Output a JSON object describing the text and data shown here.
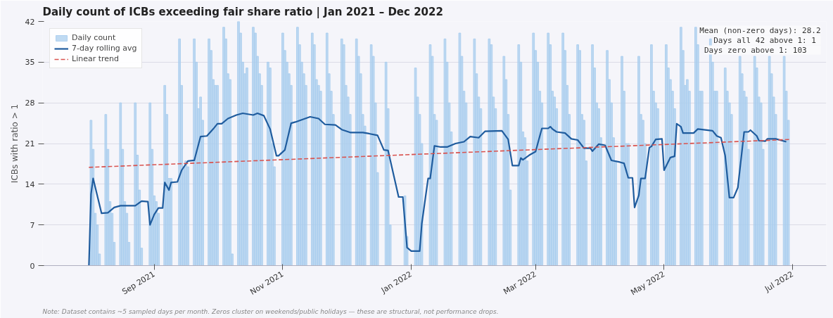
{
  "chart_data": {
    "type": "bar",
    "title": "Daily count of ICBs exceeding fair share ratio  |  Jan 2021 – Dec 2022",
    "ylabel": "ICBs with ratio > 1",
    "annotations": [
      "Mean (non-zero days): 28.2",
      "Days all 42 above 1:  1",
      "Days zero above 1:    103",
      "Note: Dataset contains ~5 sampled days per month. Zeros cluster on weekends/public holidays — these are structural, not performance drops."
    ],
    "xlim": [
      "2021-07-10",
      "2022-07-17"
    ],
    "xticks": [
      {
        "value": "2021-09-01",
        "label": "Sep 2021"
      },
      {
        "value": "2021-11-01",
        "label": "Nov 2021"
      },
      {
        "value": "2022-01-01",
        "label": "Jan 2022"
      },
      {
        "value": "2022-03-01",
        "label": "Mar 2022"
      },
      {
        "value": "2022-05-01",
        "label": "May 2022"
      },
      {
        "value": "2022-07-01",
        "label": "Jul 2022"
      }
    ],
    "ylim": [
      0,
      42
    ],
    "yticks": [
      0,
      7,
      14,
      21,
      28,
      35,
      42
    ],
    "grid": "y",
    "legend": "top left",
    "series": [
      {
        "name": "Daily count",
        "color": "#a9cdee",
        "x": [
          "2021-08-02",
          "2021-08-03",
          "2021-08-04",
          "2021-08-05",
          "2021-08-06",
          "2021-08-09",
          "2021-08-10",
          "2021-08-11",
          "2021-08-12",
          "2021-08-13",
          "2021-08-16",
          "2021-08-17",
          "2021-08-18",
          "2021-08-19",
          "2021-08-20",
          "2021-08-23",
          "2021-08-24",
          "2021-08-25",
          "2021-08-26",
          "2021-08-30",
          "2021-08-31",
          "2021-09-01",
          "2021-09-02",
          "2021-09-03",
          "2021-09-06",
          "2021-09-07",
          "2021-09-08",
          "2021-09-09",
          "2021-09-13",
          "2021-09-14",
          "2021-09-15",
          "2021-09-16",
          "2021-09-17",
          "2021-09-20",
          "2021-09-21",
          "2021-09-22",
          "2021-09-23",
          "2021-09-24",
          "2021-09-27",
          "2021-09-28",
          "2021-09-29",
          "2021-09-30",
          "2021-10-01",
          "2021-10-04",
          "2021-10-05",
          "2021-10-06",
          "2021-10-07",
          "2021-10-08",
          "2021-10-11",
          "2021-10-12",
          "2021-10-13",
          "2021-10-14",
          "2021-10-15",
          "2021-10-18",
          "2021-10-19",
          "2021-10-20",
          "2021-10-21",
          "2021-10-22",
          "2021-10-25",
          "2021-10-26",
          "2021-10-27",
          "2021-10-28",
          "2021-11-01",
          "2021-11-02",
          "2021-11-03",
          "2021-11-04",
          "2021-11-05",
          "2021-11-08",
          "2021-11-09",
          "2021-11-10",
          "2021-11-11",
          "2021-11-12",
          "2021-11-15",
          "2021-11-16",
          "2021-11-17",
          "2021-11-18",
          "2021-11-19",
          "2021-11-22",
          "2021-11-23",
          "2021-11-24",
          "2021-11-25",
          "2021-11-29",
          "2021-11-30",
          "2021-12-01",
          "2021-12-02",
          "2021-12-03",
          "2021-12-06",
          "2021-12-07",
          "2021-12-08",
          "2021-12-09",
          "2021-12-10",
          "2021-12-13",
          "2021-12-14",
          "2021-12-15",
          "2021-12-16",
          "2021-12-20",
          "2021-12-21",
          "2021-12-22",
          "2021-12-29",
          "2021-12-30",
          "2022-01-03",
          "2022-01-04",
          "2022-01-05",
          "2022-01-06",
          "2022-01-10",
          "2022-01-11",
          "2022-01-12",
          "2022-01-13",
          "2022-01-17",
          "2022-01-18",
          "2022-01-19",
          "2022-01-20",
          "2022-01-24",
          "2022-01-25",
          "2022-01-26",
          "2022-01-27",
          "2022-01-31",
          "2022-02-01",
          "2022-02-02",
          "2022-02-03",
          "2022-02-07",
          "2022-02-08",
          "2022-02-09",
          "2022-02-10",
          "2022-02-14",
          "2022-02-15",
          "2022-02-16",
          "2022-02-17",
          "2022-02-21",
          "2022-02-22",
          "2022-02-23",
          "2022-02-24",
          "2022-02-25",
          "2022-02-28",
          "2022-03-01",
          "2022-03-02",
          "2022-03-03",
          "2022-03-04",
          "2022-03-07",
          "2022-03-08",
          "2022-03-09",
          "2022-03-10",
          "2022-03-11",
          "2022-03-14",
          "2022-03-15",
          "2022-03-16",
          "2022-03-17",
          "2022-03-21",
          "2022-03-22",
          "2022-03-23",
          "2022-03-24",
          "2022-03-25",
          "2022-03-28",
          "2022-03-29",
          "2022-03-30",
          "2022-03-31",
          "2022-04-01",
          "2022-04-04",
          "2022-04-05",
          "2022-04-06",
          "2022-04-07",
          "2022-04-08",
          "2022-04-11",
          "2022-04-12",
          "2022-04-13",
          "2022-04-14",
          "2022-04-19",
          "2022-04-20",
          "2022-04-21",
          "2022-04-22",
          "2022-04-25",
          "2022-04-26",
          "2022-04-27",
          "2022-04-28",
          "2022-05-02",
          "2022-05-03",
          "2022-05-04",
          "2022-05-05",
          "2022-05-06",
          "2022-05-09",
          "2022-05-10",
          "2022-05-11",
          "2022-05-12",
          "2022-05-13",
          "2022-05-16",
          "2022-05-17",
          "2022-05-18",
          "2022-05-19",
          "2022-05-23",
          "2022-05-24",
          "2022-05-25",
          "2022-05-26",
          "2022-05-30",
          "2022-05-31",
          "2022-06-01",
          "2022-06-02",
          "2022-06-06",
          "2022-06-07",
          "2022-06-08",
          "2022-06-09",
          "2022-06-10",
          "2022-06-13",
          "2022-06-14",
          "2022-06-15",
          "2022-06-16",
          "2022-06-17",
          "2022-06-20",
          "2022-06-21",
          "2022-06-22",
          "2022-06-23",
          "2022-06-27",
          "2022-06-28",
          "2022-06-29"
        ],
        "values": [
          25,
          20,
          9,
          7,
          2,
          26,
          20,
          11,
          9,
          4,
          28,
          20,
          11,
          9,
          4,
          28,
          19,
          13,
          3,
          28,
          20,
          12,
          11,
          9,
          31,
          26,
          15,
          15,
          39,
          31,
          17,
          18,
          17,
          39,
          35,
          27,
          29,
          25,
          39,
          37,
          32,
          31,
          31,
          41,
          39,
          33,
          32,
          2,
          42,
          40,
          35,
          33,
          34,
          41,
          40,
          36,
          33,
          31,
          35,
          34,
          21,
          17,
          40,
          37,
          35,
          33,
          31,
          41,
          38,
          35,
          33,
          31,
          40,
          38,
          32,
          31,
          30,
          40,
          33,
          30,
          26,
          39,
          38,
          31,
          29,
          26,
          39,
          36,
          33,
          26,
          24,
          38,
          36,
          28,
          16,
          35,
          27,
          7,
          12,
          5,
          34,
          29,
          26,
          21,
          38,
          36,
          26,
          25,
          39,
          35,
          28,
          23,
          40,
          36,
          30,
          28,
          39,
          33,
          29,
          27,
          39,
          38,
          29,
          27,
          36,
          32,
          26,
          13,
          38,
          35,
          23,
          22,
          18,
          40,
          37,
          35,
          30,
          28,
          40,
          38,
          30,
          29,
          27,
          40,
          37,
          31,
          26,
          38,
          37,
          26,
          25,
          18,
          38,
          34,
          28,
          27,
          22,
          37,
          32,
          28,
          22,
          18,
          36,
          30,
          21,
          21,
          36,
          26,
          25,
          21,
          38,
          30,
          28,
          27,
          38,
          34,
          32,
          30,
          27,
          41,
          37,
          31,
          32,
          30,
          41,
          38,
          30,
          30,
          39,
          35,
          30,
          30,
          34,
          30,
          28,
          26,
          36,
          33,
          30,
          29,
          20,
          36,
          34,
          29,
          28,
          20,
          36,
          33,
          29,
          26,
          36,
          30,
          25
        ]
      },
      {
        "name": "7-day rolling avg",
        "type": "line",
        "color": "#1f5c9e",
        "line_style": "solid",
        "x": [
          "2021-08-01",
          "2021-08-02",
          "2021-08-03",
          "2021-08-07",
          "2021-08-10",
          "2021-08-13",
          "2021-08-16",
          "2021-08-23",
          "2021-08-26",
          "2021-08-29",
          "2021-08-30",
          "2021-09-01",
          "2021-09-03",
          "2021-09-05",
          "2021-09-06",
          "2021-09-08",
          "2021-09-09",
          "2021-09-12",
          "2021-09-14",
          "2021-09-17",
          "2021-09-20",
          "2021-09-23",
          "2021-09-26",
          "2021-09-29",
          "2021-10-01",
          "2021-10-03",
          "2021-10-06",
          "2021-10-10",
          "2021-10-13",
          "2021-10-18",
          "2021-10-20",
          "2021-10-23",
          "2021-10-26",
          "2021-10-29",
          "2021-10-30",
          "2021-11-02",
          "2021-11-05",
          "2021-11-07",
          "2021-11-14",
          "2021-11-18",
          "2021-11-21",
          "2021-11-26",
          "2021-11-29",
          "2021-12-03",
          "2021-12-09",
          "2021-12-12",
          "2021-12-16",
          "2021-12-19",
          "2021-12-21",
          "2021-12-26",
          "2021-12-28",
          "2021-12-30",
          "2022-01-01",
          "2022-01-05",
          "2022-01-06",
          "2022-01-09",
          "2022-01-10",
          "2022-01-12",
          "2022-01-15",
          "2022-01-18",
          "2022-01-22",
          "2022-01-26",
          "2022-01-29",
          "2022-02-02",
          "2022-02-05",
          "2022-02-13",
          "2022-02-16",
          "2022-02-18",
          "2022-02-21",
          "2022-02-22",
          "2022-02-23",
          "2022-02-26",
          "2022-03-01",
          "2022-03-04",
          "2022-03-07",
          "2022-03-08",
          "2022-03-09",
          "2022-03-11",
          "2022-03-15",
          "2022-03-18",
          "2022-03-21",
          "2022-03-24",
          "2022-03-27",
          "2022-03-28",
          "2022-03-31",
          "2022-04-03",
          "2022-04-06",
          "2022-04-10",
          "2022-04-12",
          "2022-04-14",
          "2022-04-16",
          "2022-04-17",
          "2022-04-19",
          "2022-04-20",
          "2022-04-22",
          "2022-04-24",
          "2022-04-25",
          "2022-04-27",
          "2022-04-30",
          "2022-05-01",
          "2022-05-04",
          "2022-05-06",
          "2022-05-07",
          "2022-05-09",
          "2022-05-10",
          "2022-05-15",
          "2022-05-17",
          "2022-05-24",
          "2022-05-26",
          "2022-05-28",
          "2022-05-30",
          "2022-06-01",
          "2022-06-03",
          "2022-06-05",
          "2022-06-08",
          "2022-06-10",
          "2022-06-11",
          "2022-06-14",
          "2022-06-15",
          "2022-06-18",
          "2022-06-19",
          "2022-06-23",
          "2022-06-28"
        ],
        "values": [
          0,
          12.3,
          15.0,
          9.0,
          9.1,
          10.0,
          10.3,
          10.3,
          11.1,
          11.0,
          7.0,
          8.8,
          9.9,
          9.9,
          14.3,
          13.0,
          14.3,
          14.4,
          16.4,
          18.0,
          18.1,
          22.2,
          22.3,
          23.5,
          24.4,
          24.4,
          25.3,
          25.9,
          26.2,
          25.9,
          26.2,
          25.8,
          23.5,
          18.9,
          18.9,
          19.9,
          24.5,
          24.7,
          25.6,
          25.3,
          24.3,
          24.2,
          23.4,
          22.9,
          22.9,
          22.7,
          22.4,
          19.9,
          19.8,
          11.8,
          11.8,
          3.1,
          2.5,
          2.5,
          7.2,
          15.0,
          15.0,
          20.6,
          20.4,
          20.4,
          21.0,
          21.3,
          22.2,
          22.0,
          23.1,
          23.2,
          21.7,
          17.2,
          17.2,
          18.5,
          18.2,
          19.0,
          19.6,
          23.6,
          23.6,
          23.9,
          23.5,
          23.0,
          22.8,
          21.8,
          21.6,
          20.2,
          20.2,
          19.7,
          20.9,
          20.7,
          18.1,
          17.8,
          17.6,
          15.1,
          15.1,
          10.0,
          12.1,
          15.0,
          15.0,
          20.3,
          20.5,
          21.7,
          21.8,
          16.4,
          18.6,
          18.8,
          24.4,
          23.9,
          22.8,
          22.8,
          23.5,
          23.2,
          22.3,
          22.0,
          18.9,
          11.7,
          11.7,
          13.4,
          23.0,
          23.0,
          23.3,
          22.3,
          21.5,
          21.4,
          21.8,
          21.8,
          21.3
        ]
      },
      {
        "name": "Linear trend",
        "type": "line",
        "color": "#d9534f",
        "line_style": "dashed",
        "x": [
          "2021-08-01",
          "2022-06-30"
        ],
        "values": [
          16.9,
          21.7
        ]
      }
    ]
  }
}
